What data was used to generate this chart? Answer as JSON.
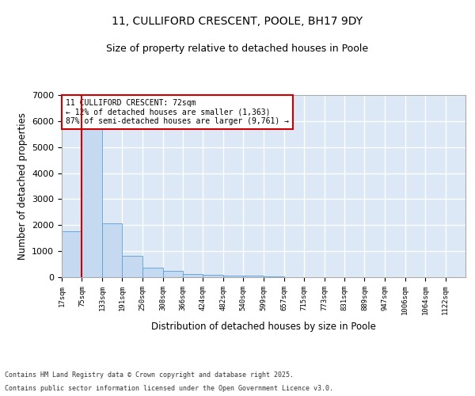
{
  "title1": "11, CULLIFORD CRESCENT, POOLE, BH17 9DY",
  "title2": "Size of property relative to detached houses in Poole",
  "xlabel": "Distribution of detached houses by size in Poole",
  "ylabel": "Number of detached properties",
  "annotation_line1": "11 CULLIFORD CRESCENT: 72sqm",
  "annotation_line2": "← 12% of detached houses are smaller (1,363)",
  "annotation_line3": "87% of semi-detached houses are larger (9,761) →",
  "footer1": "Contains HM Land Registry data © Crown copyright and database right 2025.",
  "footer2": "Contains public sector information licensed under the Open Government Licence v3.0.",
  "bar_edges": [
    17,
    75,
    133,
    191,
    250,
    308,
    366,
    424,
    482,
    540,
    599,
    657,
    715,
    773,
    831,
    889,
    947,
    1006,
    1064,
    1122,
    1180
  ],
  "bar_heights": [
    1780,
    5820,
    2080,
    820,
    360,
    230,
    120,
    90,
    70,
    55,
    35,
    0,
    0,
    0,
    0,
    0,
    0,
    0,
    0,
    0
  ],
  "bar_color": "#c5d9f0",
  "bar_edge_color": "#5a9fd4",
  "property_line_x": 75,
  "property_line_color": "#cc0000",
  "ylim": [
    0,
    7000
  ],
  "yticks": [
    0,
    1000,
    2000,
    3000,
    4000,
    5000,
    6000,
    7000
  ],
  "bg_color": "#dce8f5",
  "grid_color": "#ffffff",
  "annotation_box_color": "#cc0000",
  "title_fontsize": 10,
  "subtitle_fontsize": 9
}
